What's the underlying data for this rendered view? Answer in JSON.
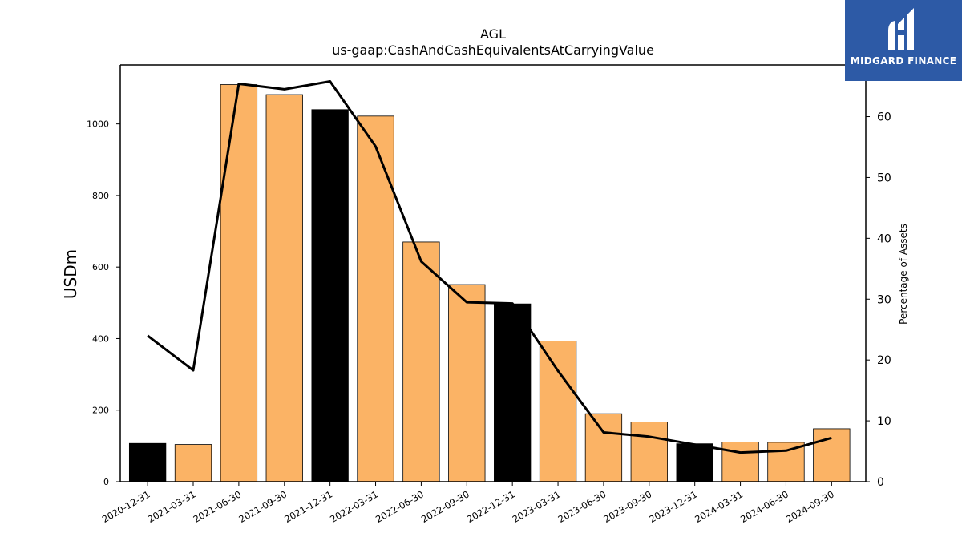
{
  "chart_data": {
    "type": "bar",
    "title": "AGL",
    "subtitle": "us-gaap:CashAndCashEquivalentsAtCarryingValue",
    "ylabel": "USDm",
    "y2label": "Percentage of Assets",
    "categories": [
      "2020-12-31",
      "2021-03-31",
      "2021-06-30",
      "2021-09-30",
      "2021-12-31",
      "2022-03-31",
      "2022-06-30",
      "2022-09-30",
      "2022-12-31",
      "2023-03-31",
      "2023-06-30",
      "2023-09-30",
      "2023-12-31",
      "2024-03-31",
      "2024-06-30",
      "2024-09-30"
    ],
    "series": [
      {
        "values": [
          107,
          104,
          1110,
          1082,
          1040,
          1022,
          670,
          551,
          497,
          393,
          190,
          167,
          106,
          111,
          110,
          148
        ],
        "colors": [
          "#000000",
          "#fbb365",
          "#fbb365",
          "#fbb365",
          "#000000",
          "#fbb365",
          "#fbb365",
          "#fbb365",
          "#000000",
          "#fbb365",
          "#fbb365",
          "#fbb365",
          "#000000",
          "#fbb365",
          "#fbb365",
          "#fbb365"
        ]
      },
      {
        "type": "line",
        "axis": "right",
        "color": "#000000",
        "values": [
          24.0,
          18.3,
          65.4,
          64.5,
          65.8,
          55.1,
          36.2,
          29.5,
          29.3,
          18.2,
          8.1,
          7.4,
          6.1,
          4.8,
          5.1,
          7.2
        ]
      }
    ],
    "ylim": [
      0,
      1165
    ],
    "yticks": [
      0,
      200,
      400,
      600,
      800,
      1000
    ],
    "y2lim": [
      0,
      68.5
    ],
    "y2ticks": [
      0,
      10,
      20,
      30,
      40,
      50,
      60
    ],
    "grid": false
  },
  "logo": {
    "text": "MIDGARD FINANCE",
    "color": "#2d5aa6"
  }
}
